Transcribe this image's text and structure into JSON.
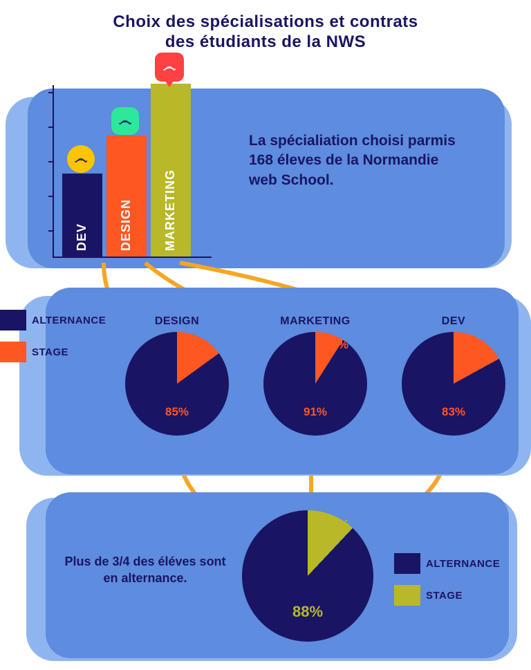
{
  "title_line1": "Choix des spécialisations et contrats",
  "title_line2": "des étudiants de la NWS",
  "colors": {
    "bg_light": "#8fb5f0",
    "bg_mid": "#5e8cde",
    "navy": "#1a1464",
    "orange": "#ff5722",
    "olive": "#b8b828",
    "gold": "#f5a623",
    "yellow_badge": "#ffc400",
    "green_badge": "#2de89a",
    "red_badge": "#ff4141"
  },
  "section1": {
    "text": " La spécialiation choisi parmis 168 éleves de la Normandie web School.",
    "bar_chart": {
      "type": "bar",
      "y_ticks": 5,
      "bars": [
        {
          "label": "DEV",
          "height_pct": 48,
          "color": "#1a1464",
          "badge_color": "#ffc400",
          "badge_shape": "circle"
        },
        {
          "label": "DESIGN",
          "height_pct": 70,
          "color": "#ff5722",
          "badge_color": "#2de89a",
          "badge_shape": "rounded"
        },
        {
          "label": "MARKETING",
          "height_pct": 100,
          "color": "#b8b828",
          "badge_color": "#ff4141",
          "badge_shape": "marker"
        }
      ]
    }
  },
  "section2": {
    "legend": [
      {
        "label": "ALTERNANCE",
        "color": "#1a1464"
      },
      {
        "label": "STAGE",
        "color": "#ff5722"
      }
    ],
    "pies": [
      {
        "title": "DESIGN",
        "alternance": 85,
        "stage": 15,
        "colors": {
          "main": "#1a1464",
          "slice": "#ff5722"
        },
        "label_color": "#ff5722"
      },
      {
        "title": "MARKETING",
        "alternance": 91,
        "stage": 9,
        "colors": {
          "main": "#1a1464",
          "slice": "#ff5722"
        },
        "label_color": "#ff5722"
      },
      {
        "title": "DEV",
        "alternance": 83,
        "stage": 17,
        "colors": {
          "main": "#1a1464",
          "slice": "#ff5722"
        },
        "label_color": "#ff5722"
      }
    ]
  },
  "section3": {
    "text": "Plus de 3/4 des éléves sont en alternance.",
    "legend": [
      {
        "label": "ALTERNANCE",
        "color": "#1a1464"
      },
      {
        "label": "STAGE",
        "color": "#b8b828"
      }
    ],
    "pie": {
      "alternance": 88,
      "stage": 12,
      "colors": {
        "main": "#1a1464",
        "slice": "#b8b828"
      },
      "label_color": "#b8b828"
    }
  }
}
